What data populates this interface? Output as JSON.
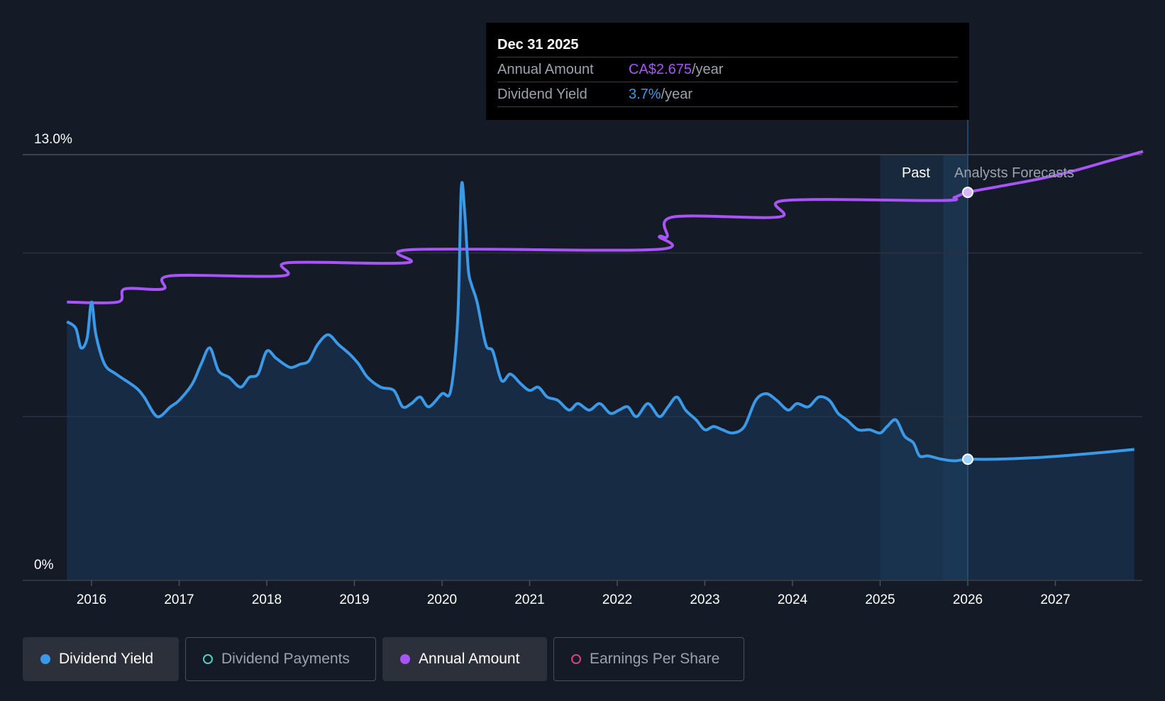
{
  "colors": {
    "background": "#151b26",
    "yield": "#3b9ae8",
    "amount": "#a855f7",
    "payments": "#4fd1c5",
    "eps": "#d4457a"
  },
  "tooltip": {
    "date": "Dec 31 2025",
    "rows": [
      {
        "label": "Annual Amount",
        "value": "CA$2.675",
        "unit": "/year"
      },
      {
        "label": "Dividend Yield",
        "value": "3.7%",
        "unit": "/year"
      }
    ]
  },
  "regions": {
    "past": "Past",
    "forecast": "Analysts Forecasts"
  },
  "legend": [
    {
      "label": "Dividend Yield",
      "active": true,
      "color": "#3b9ae8",
      "filled": true
    },
    {
      "label": "Dividend Payments",
      "active": false,
      "color": "#4fd1c5",
      "filled": false
    },
    {
      "label": "Annual Amount",
      "active": true,
      "color": "#a855f7",
      "filled": true
    },
    {
      "label": "Earnings Per Share",
      "active": false,
      "color": "#d4457a",
      "filled": false
    }
  ],
  "chart_data": {
    "type": "line",
    "ylim": [
      0,
      13
    ],
    "y_tick_labels": [
      {
        "value": 13,
        "label": "13.0%"
      },
      {
        "value": 0,
        "label": "0%"
      }
    ],
    "y_gridlines": [
      5,
      10,
      13
    ],
    "xlim": [
      2015.75,
      2028.0
    ],
    "x_ticks": [
      2016,
      2017,
      2018,
      2019,
      2020,
      2021,
      2022,
      2023,
      2024,
      2025,
      2026,
      2027
    ],
    "past_start": 2025.0,
    "forecast_start": 2026.0,
    "series": [
      {
        "name": "Dividend Yield",
        "x": [
          2015.72,
          2015.82,
          2015.88,
          2015.95,
          2016.0,
          2016.05,
          2016.15,
          2016.28,
          2016.5,
          2016.6,
          2016.75,
          2016.9,
          2017.0,
          2017.15,
          2017.25,
          2017.35,
          2017.45,
          2017.57,
          2017.7,
          2017.8,
          2017.9,
          2018.0,
          2018.1,
          2018.2,
          2018.28,
          2018.38,
          2018.48,
          2018.58,
          2018.7,
          2018.82,
          2018.95,
          2019.05,
          2019.15,
          2019.3,
          2019.45,
          2019.55,
          2019.65,
          2019.75,
          2019.85,
          2020.0,
          2020.1,
          2020.18,
          2020.22,
          2020.26,
          2020.3,
          2020.34,
          2020.4,
          2020.5,
          2020.58,
          2020.68,
          2020.78,
          2020.9,
          2021.0,
          2021.1,
          2021.2,
          2021.32,
          2021.45,
          2021.55,
          2021.68,
          2021.8,
          2021.92,
          2022.02,
          2022.12,
          2022.22,
          2022.35,
          2022.48,
          2022.58,
          2022.68,
          2022.78,
          2022.9,
          2023.0,
          2023.1,
          2023.2,
          2023.32,
          2023.45,
          2023.58,
          2023.7,
          2023.82,
          2023.95,
          2024.05,
          2024.18,
          2024.3,
          2024.42,
          2024.52,
          2024.62,
          2024.75,
          2024.88,
          2025.0,
          2025.08,
          2025.18,
          2025.28,
          2025.38,
          2025.45,
          2025.55,
          2025.7,
          2025.85,
          2026.0,
          2026.3,
          2026.8,
          2027.3,
          2027.9
        ],
        "y": [
          7.9,
          7.7,
          7.1,
          7.4,
          8.5,
          7.5,
          6.6,
          6.3,
          5.9,
          5.6,
          5.0,
          5.3,
          5.5,
          6.0,
          6.6,
          7.1,
          6.4,
          6.2,
          5.9,
          6.2,
          6.3,
          7.0,
          6.8,
          6.6,
          6.5,
          6.6,
          6.7,
          7.2,
          7.5,
          7.2,
          6.9,
          6.6,
          6.2,
          5.9,
          5.8,
          5.3,
          5.4,
          5.6,
          5.3,
          5.7,
          5.8,
          8.0,
          12.0,
          11.2,
          9.5,
          9.0,
          8.5,
          7.2,
          7.0,
          6.1,
          6.3,
          6.0,
          5.8,
          5.9,
          5.6,
          5.5,
          5.2,
          5.4,
          5.2,
          5.4,
          5.1,
          5.2,
          5.3,
          5.0,
          5.4,
          5.0,
          5.3,
          5.6,
          5.2,
          4.9,
          4.6,
          4.7,
          4.6,
          4.5,
          4.7,
          5.5,
          5.7,
          5.5,
          5.2,
          5.4,
          5.3,
          5.6,
          5.5,
          5.1,
          4.9,
          4.6,
          4.6,
          4.5,
          4.7,
          4.9,
          4.4,
          4.2,
          3.8,
          3.8,
          3.7,
          3.65,
          3.7,
          3.7,
          3.75,
          3.85,
          4.0
        ]
      },
      {
        "name": "Annual Amount",
        "x": [
          2015.72,
          2016.3,
          2016.38,
          2016.82,
          2016.9,
          2018.18,
          2018.24,
          2019.6,
          2019.66,
          2022.42,
          2022.48,
          2022.57,
          2022.64,
          2023.85,
          2023.91,
          2025.7,
          2025.85,
          2026.0,
          2026.4,
          2026.8,
          2027.2,
          2027.6,
          2028.0
        ],
        "y": [
          8.5,
          8.5,
          8.9,
          8.9,
          9.3,
          9.3,
          9.7,
          9.7,
          10.1,
          10.1,
          10.5,
          10.5,
          11.1,
          11.1,
          11.6,
          11.6,
          11.7,
          11.85,
          12.05,
          12.25,
          12.5,
          12.8,
          13.1
        ]
      }
    ],
    "highlight": {
      "x": 2026.0,
      "yield": 3.7,
      "amount": 11.85
    }
  }
}
